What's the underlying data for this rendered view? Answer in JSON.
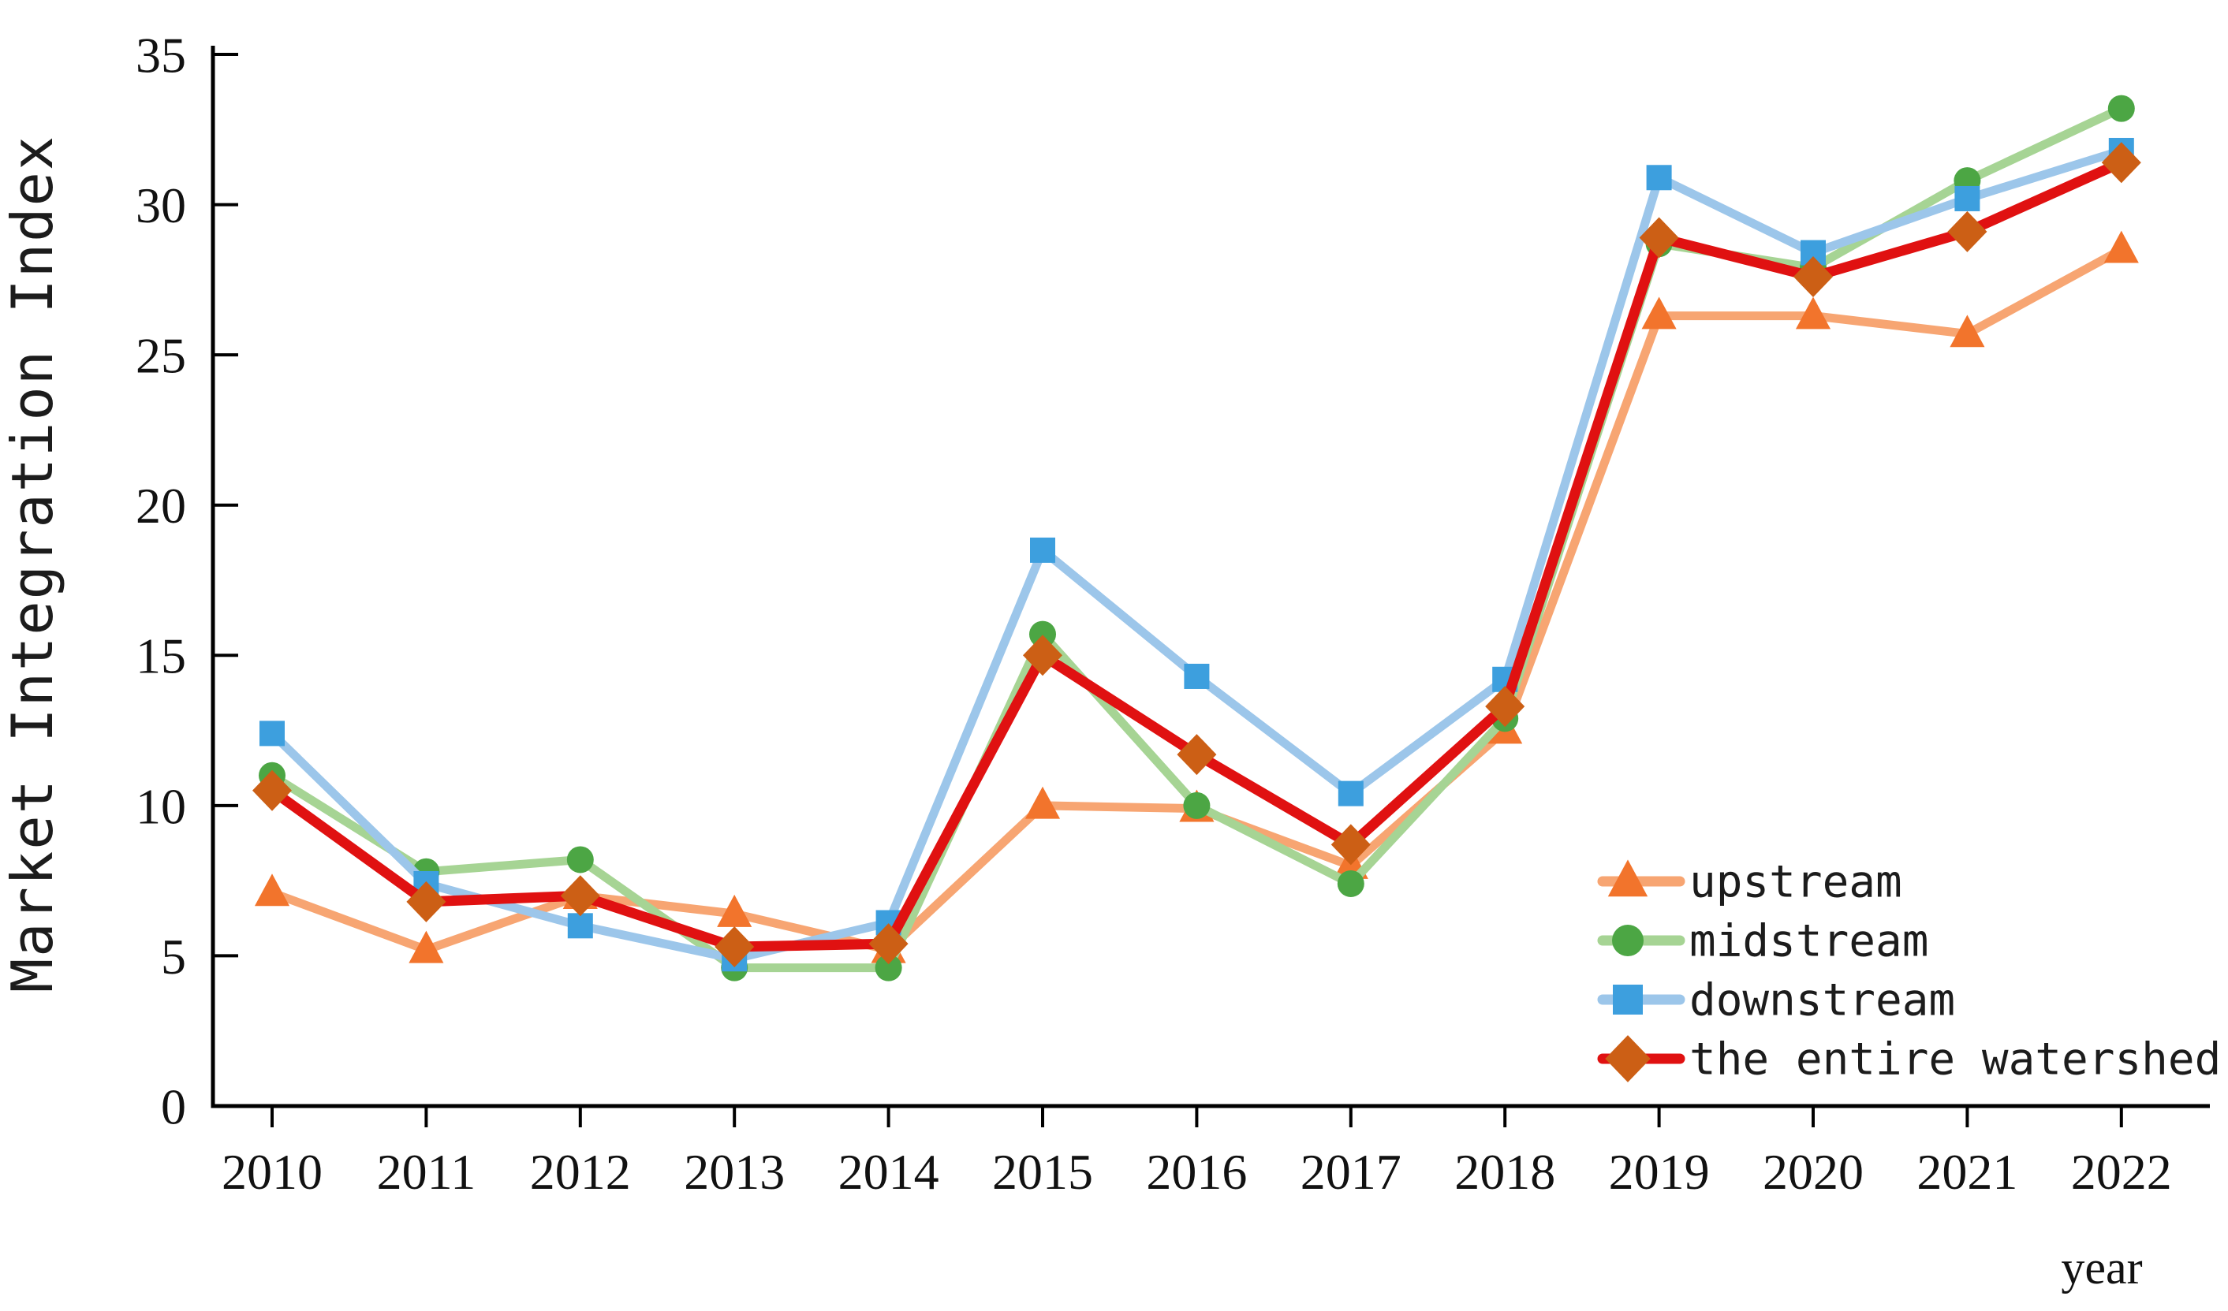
{
  "figure": {
    "background_color": "#ffffff",
    "axis_color": "#000000",
    "text_color": "#111111"
  },
  "chart_data": {
    "type": "line",
    "title": "",
    "xlabel": "year",
    "ylabel": "Market Integration Index",
    "x_tick_labels": [
      "2010",
      "2011",
      "2012",
      "2013",
      "2014",
      "2015",
      "2016",
      "2017",
      "2018",
      "2019",
      "2020",
      "2021",
      "2022"
    ],
    "x_values": [
      2010,
      2011,
      2012,
      2013,
      2014,
      2015,
      2016,
      2017,
      2018,
      2019,
      2020,
      2021,
      2022
    ],
    "ylim": [
      0,
      35
    ],
    "yticks": [
      0,
      5,
      10,
      15,
      20,
      25,
      30,
      35
    ],
    "grid": false,
    "legend_position": "lower-right-inside",
    "series": [
      {
        "name": "upstream",
        "marker": "triangle",
        "line_color": "#F7A572",
        "marker_color": "#F2742C",
        "values": [
          7.1,
          5.2,
          7.0,
          6.4,
          5.2,
          10.0,
          9.9,
          8.0,
          12.5,
          26.3,
          26.3,
          25.7,
          28.5
        ]
      },
      {
        "name": "midstream",
        "marker": "circle",
        "line_color": "#A6D494",
        "marker_color": "#4CA644",
        "values": [
          11.0,
          7.8,
          8.2,
          4.6,
          4.6,
          15.7,
          10.0,
          7.4,
          12.9,
          28.7,
          27.9,
          30.8,
          33.2
        ]
      },
      {
        "name": "downstream",
        "marker": "square",
        "line_color": "#9CC6EA",
        "marker_color": "#3D9FDE",
        "values": [
          12.4,
          7.4,
          6.0,
          4.9,
          6.1,
          18.5,
          14.3,
          10.4,
          14.2,
          30.9,
          28.4,
          30.2,
          31.8
        ]
      },
      {
        "name": "the entire watershed",
        "marker": "diamond",
        "line_color": "#E01111",
        "marker_color": "#CC5F15",
        "values": [
          10.5,
          6.8,
          7.0,
          5.3,
          5.4,
          15.0,
          11.7,
          8.7,
          13.3,
          28.9,
          27.6,
          29.1,
          31.4
        ]
      }
    ]
  }
}
